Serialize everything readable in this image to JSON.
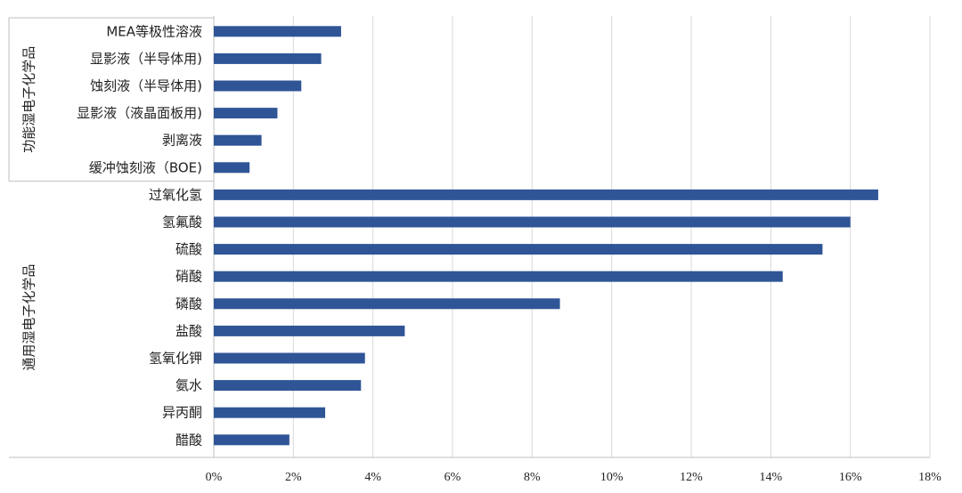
{
  "chart_data": {
    "type": "bar",
    "orientation": "horizontal",
    "x_ticks": [
      "0%",
      "2%",
      "4%",
      "6%",
      "8%",
      "10%",
      "12%",
      "14%",
      "16%",
      "18%"
    ],
    "xlim": [
      0,
      18
    ],
    "grid": true,
    "bar_color": "#2f5597",
    "groups": [
      {
        "name": "功能湿电子化学品",
        "categories": [
          "MEA等极性溶液",
          "显影液（半导体用)",
          "蚀刻液（半导体用)",
          "显影液（液晶面板用)",
          "剥离液",
          "缓冲蚀刻液（BOE)"
        ],
        "values": [
          3.2,
          2.7,
          2.2,
          1.6,
          1.2,
          0.9
        ]
      },
      {
        "name": "通用湿电子化学品",
        "categories": [
          "过氧化氢",
          "氢氟酸",
          "硫酸",
          "硝酸",
          "磷酸",
          "盐酸",
          "氢氧化钾",
          "氨水",
          "异丙酮",
          "醋酸"
        ],
        "values": [
          16.7,
          16.0,
          15.3,
          14.3,
          8.7,
          4.8,
          3.8,
          3.7,
          2.8,
          1.9
        ]
      }
    ]
  }
}
